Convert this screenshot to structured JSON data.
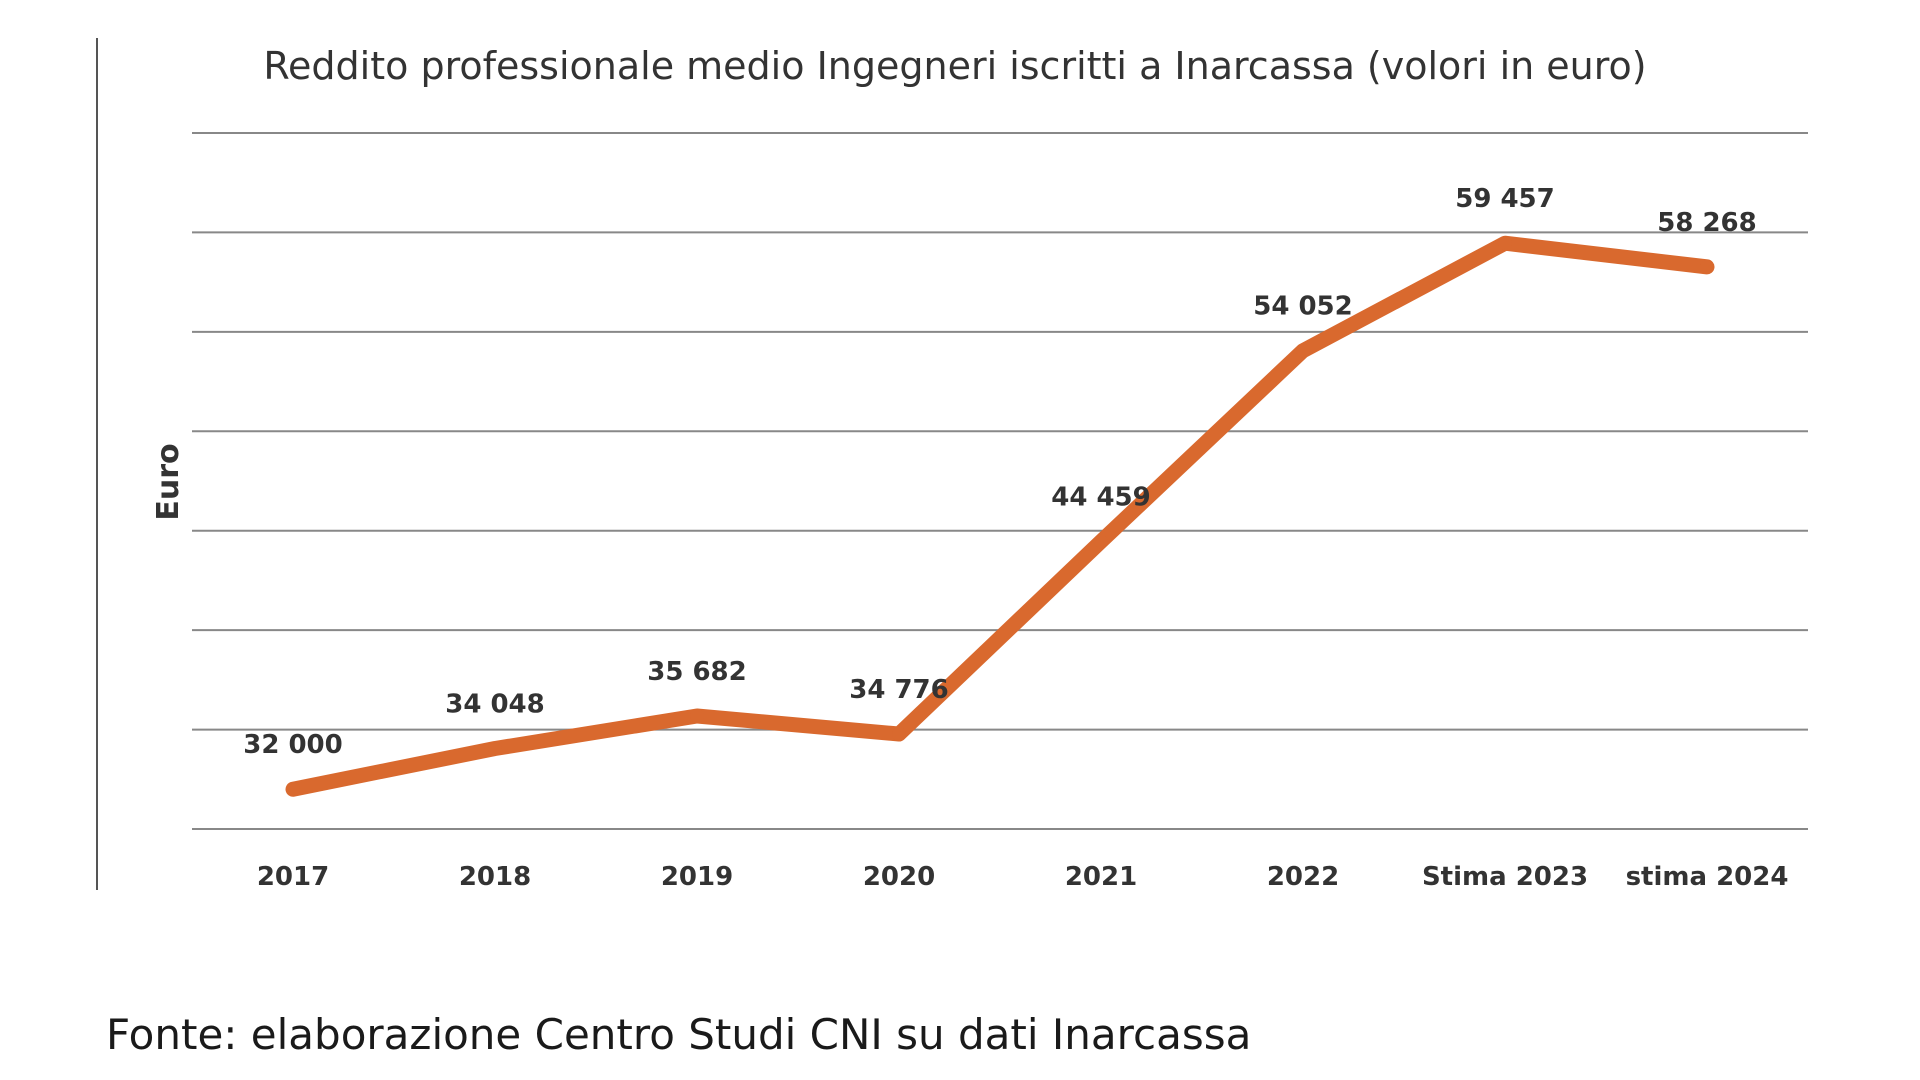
{
  "chart_data": {
    "type": "line",
    "title": "Reddito professionale medio Ingegneri iscritti a Inarcassa (volori in euro)",
    "xlabel": "",
    "ylabel": "Euro",
    "categories": [
      "2017",
      "2018",
      "2019",
      "2020",
      "2021",
      "2022",
      "Stima 2023",
      "stima 2024"
    ],
    "series": [
      {
        "values": [
          32000,
          34048,
          35682,
          34776,
          44459,
          54052,
          59457,
          58268
        ],
        "labels": [
          "32 000",
          "34 048",
          "35 682",
          "34 776",
          "44 459",
          "54 052",
          "59 457",
          "58 268"
        ]
      }
    ],
    "ylim": [
      30000,
      65000
    ],
    "gridlines": [
      30000,
      35000,
      40000,
      45000,
      50000,
      55000,
      60000,
      65000
    ],
    "grid": true,
    "legend": "none",
    "colors": {
      "line": "#D9692E",
      "grid": "#888888",
      "frame": "#555555"
    }
  },
  "source": "Fonte: elaborazione Centro Studi CNI su dati Inarcassa"
}
